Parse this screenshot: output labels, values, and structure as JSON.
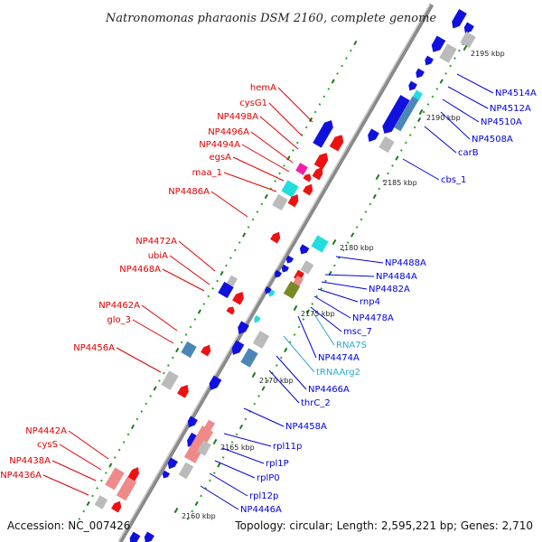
{
  "title": "Natronomonas pharaonis DSM 2160, complete genome",
  "footer": {
    "accession": "Accession: NC_007426",
    "topology": "Topology: circular; Length: 2,595,221 bp; Genes: 2,710"
  },
  "colors": {
    "backbone": "#8a8a8a",
    "forward_label": "#e00000",
    "reverse_label": "#0000e0",
    "rna_label": "#2aa8d8",
    "tick_major": "#1a7a1a",
    "tick_minor": "#22aa22",
    "gene_red": "#ee1111",
    "gene_blue": "#1111dd",
    "gene_gray": "#bbbbbb",
    "gene_pink": "#f08a8a",
    "gene_cyan": "#22dddd",
    "gene_steel": "#4a86b8",
    "gene_magenta": "#ee22aa",
    "gene_olive": "#7a8a22"
  },
  "kbp_labels": [
    "2160 kbp",
    "2165 kbp",
    "2170 kbp",
    "2175 kbp",
    "2180 kbp",
    "2185 kbp",
    "2190 kbp",
    "2195 kbp"
  ],
  "forward_genes": [
    "hemA",
    "cysG1",
    "NP4498A",
    "NP4496A",
    "NP4494A",
    "egsA",
    "maa_1",
    "NP4486A",
    "NP4472A",
    "ubiA",
    "NP4468A",
    "NP4462A",
    "glo_3",
    "NP4456A",
    "NP4442A",
    "cysS",
    "NP4438A",
    "NP4436A"
  ],
  "reverse_genes": [
    "NP4514A",
    "NP4512A",
    "NP4510A",
    "NP4508A",
    "carB",
    "cbs_1",
    "NP4488A",
    "NP4484A",
    "NP4482A",
    "rnp4",
    "NP4478A",
    "msc_7",
    "NP4474A",
    "NP4466A",
    "thrC_2",
    "NP4458A",
    "rpl11p",
    "rpl1P",
    "rplP0",
    "rpl12p",
    "NP4446A"
  ],
  "rna_genes": [
    "RNA7S",
    "tRNAArg2"
  ]
}
